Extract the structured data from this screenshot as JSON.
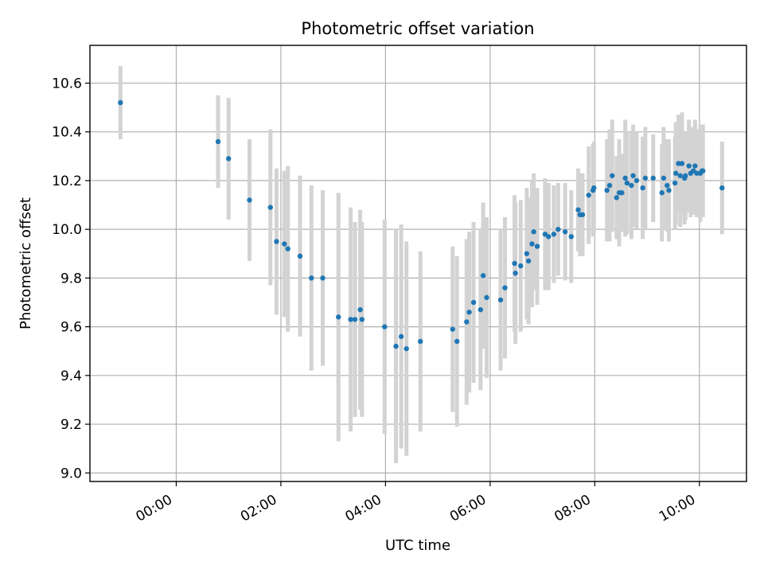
{
  "chart_data": {
    "type": "scatter",
    "title": "Photometric offset variation",
    "xlabel": "UTC time",
    "ylabel": "Photometric offset",
    "xlim": [
      "-1:39",
      "10:54"
    ],
    "ylim": [
      8.965,
      10.755
    ],
    "grid": true,
    "x_ticks": [
      "00:00",
      "02:00",
      "04:00",
      "06:00",
      "08:00",
      "10:00"
    ],
    "y_ticks": [
      "9.0",
      "9.2",
      "9.4",
      "9.6",
      "9.8",
      "10.0",
      "10.2",
      "10.4",
      "10.6"
    ],
    "colors": {
      "point": "#1f77b4",
      "error_bar": "#d3d3d3"
    },
    "series": [
      {
        "x": [
          "-1:04",
          "0:48",
          "1:00",
          "1:24",
          "1:48",
          "1:55",
          "2:04",
          "2:08",
          "2:22",
          "2:35",
          "2:48",
          "3:06",
          "3:20",
          "3:25",
          "3:31",
          "3:33",
          "3:59",
          "4:12",
          "4:18",
          "4:24",
          "4:40",
          "5:17",
          "5:22",
          "5:33",
          "5:36",
          "5:41",
          "5:49",
          "5:52",
          "5:56",
          "6:12",
          "6:17",
          "6:28",
          "6:29",
          "6:35",
          "6:42",
          "6:44",
          "6:48",
          "6:50",
          "6:54",
          "7:03",
          "7:07",
          "7:13",
          "7:18",
          "7:26",
          "7:33",
          "7:41",
          "7:43",
          "7:46",
          "7:53",
          "7:58",
          "7:59",
          "8:14",
          "8:17",
          "8:20",
          "8:25",
          "8:28",
          "8:31",
          "8:35",
          "8:37",
          "8:42",
          "8:44",
          "8:48",
          "8:55",
          "8:58",
          "9:07",
          "9:17",
          "9:19",
          "9:23",
          "9:25",
          "9:32",
          "9:33",
          "9:36",
          "9:38",
          "9:40",
          "9:43",
          "9:44",
          "9:48",
          "9:50",
          "9:53",
          "9:55",
          "9:57",
          "10:01",
          "10:03",
          "10:04",
          "10:26"
        ],
        "y": [
          10.52,
          10.36,
          10.29,
          10.12,
          10.09,
          9.95,
          9.94,
          9.92,
          9.89,
          9.8,
          9.8,
          9.64,
          9.63,
          9.63,
          9.67,
          9.63,
          9.6,
          9.52,
          9.56,
          9.51,
          9.54,
          9.59,
          9.54,
          9.62,
          9.66,
          9.7,
          9.67,
          9.81,
          9.72,
          9.71,
          9.76,
          9.86,
          9.82,
          9.85,
          9.9,
          9.87,
          9.94,
          9.99,
          9.93,
          9.98,
          9.97,
          9.98,
          10.0,
          9.99,
          9.97,
          10.08,
          10.06,
          10.06,
          10.14,
          10.16,
          10.17,
          10.16,
          10.18,
          10.22,
          10.13,
          10.15,
          10.15,
          10.21,
          10.19,
          10.18,
          10.22,
          10.2,
          10.17,
          10.21,
          10.21,
          10.15,
          10.21,
          10.18,
          10.16,
          10.19,
          10.23,
          10.27,
          10.22,
          10.27,
          10.21,
          10.22,
          10.26,
          10.23,
          10.24,
          10.26,
          10.23,
          10.23,
          10.24,
          10.24,
          10.17
        ],
        "err": [
          0.15,
          0.19,
          0.25,
          0.25,
          0.32,
          0.3,
          0.3,
          0.34,
          0.33,
          0.38,
          0.36,
          0.51,
          0.46,
          0.4,
          0.41,
          0.4,
          0.44,
          0.48,
          0.46,
          0.44,
          0.37,
          0.34,
          0.35,
          0.34,
          0.33,
          0.33,
          0.33,
          0.3,
          0.33,
          0.29,
          0.29,
          0.28,
          0.29,
          0.27,
          0.27,
          0.26,
          0.26,
          0.24,
          0.24,
          0.23,
          0.22,
          0.2,
          0.19,
          0.2,
          0.19,
          0.17,
          0.17,
          0.17,
          0.2,
          0.19,
          0.19,
          0.21,
          0.23,
          0.23,
          0.17,
          0.22,
          0.16,
          0.24,
          0.21,
          0.22,
          0.21,
          0.2,
          0.21,
          0.21,
          0.18,
          0.2,
          0.21,
          0.19,
          0.21,
          0.19,
          0.21,
          0.2,
          0.21,
          0.21,
          0.19,
          0.18,
          0.19,
          0.18,
          0.18,
          0.19,
          0.18,
          0.2,
          0.18,
          0.19,
          0.19
        ]
      }
    ]
  }
}
